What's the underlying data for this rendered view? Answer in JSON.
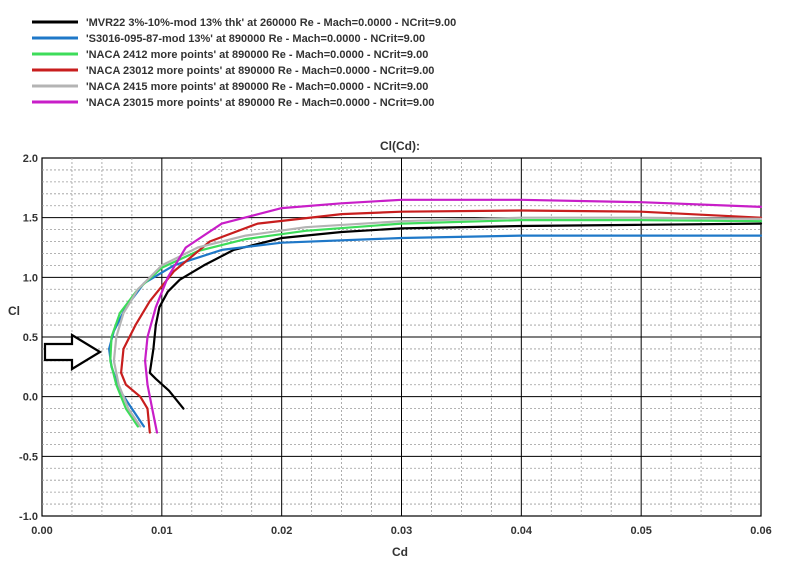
{
  "chart_data": {
    "type": "line",
    "title": "Cl(Cd):",
    "xlabel": "Cd",
    "ylabel": "Cl",
    "xlim": [
      0,
      0.06
    ],
    "ylim": [
      -1.0,
      2.0
    ],
    "x_ticks": [
      "0.00",
      "0.01",
      "0.02",
      "0.03",
      "0.04",
      "0.05",
      "0.06"
    ],
    "y_ticks": [
      "-1.0",
      "-0.5",
      "0.0",
      "0.5",
      "1.0",
      "1.5",
      "2.0"
    ],
    "grid": true,
    "legend_position": "top-left",
    "annotation": "arrow pointing at Cl 0.4",
    "series": [
      {
        "name": "'MVR22 3%-10%-mod 13% thk' at 260000 Re - Mach=0.0000 - NCrit=9.00",
        "color": "#000000",
        "x": [
          0.0118,
          0.0106,
          0.0095,
          0.009,
          0.0093,
          0.0095,
          0.0098,
          0.0105,
          0.0115,
          0.0135,
          0.016,
          0.02,
          0.025,
          0.03,
          0.04,
          0.05,
          0.06
        ],
        "y": [
          -0.1,
          0.05,
          0.15,
          0.2,
          0.4,
          0.6,
          0.75,
          0.88,
          0.98,
          1.1,
          1.23,
          1.33,
          1.38,
          1.41,
          1.43,
          1.44,
          1.45
        ]
      },
      {
        "name": "'S3016-095-87-mod 13%' at 890000 Re - Mach=0.0000 - NCrit=9.00",
        "color": "#1f78c8",
        "x": [
          0.0085,
          0.0075,
          0.0065,
          0.0058,
          0.0056,
          0.006,
          0.007,
          0.0085,
          0.011,
          0.015,
          0.02,
          0.03,
          0.04,
          0.05,
          0.06
        ],
        "y": [
          -0.25,
          -0.1,
          0.05,
          0.25,
          0.4,
          0.55,
          0.75,
          0.95,
          1.1,
          1.23,
          1.29,
          1.33,
          1.35,
          1.35,
          1.35
        ]
      },
      {
        "name": "'NACA 2412 more points' at 890000 Re - Mach=0.0000 - NCrit=9.00",
        "color": "#3ddc5a",
        "x": [
          0.008,
          0.007,
          0.0062,
          0.0057,
          0.0058,
          0.0065,
          0.008,
          0.01,
          0.013,
          0.017,
          0.022,
          0.03,
          0.04,
          0.05,
          0.06
        ],
        "y": [
          -0.25,
          -0.1,
          0.1,
          0.3,
          0.5,
          0.7,
          0.9,
          1.08,
          1.22,
          1.32,
          1.39,
          1.45,
          1.48,
          1.48,
          1.47
        ]
      },
      {
        "name": "'NACA 23012 more points' at 890000 Re - Mach=0.0000 - NCrit=9.00",
        "color": "#c81e1e",
        "x": [
          0.009,
          0.0088,
          0.0082,
          0.007,
          0.0066,
          0.0068,
          0.0078,
          0.009,
          0.011,
          0.014,
          0.018,
          0.025,
          0.03,
          0.04,
          0.05,
          0.06
        ],
        "y": [
          -0.3,
          -0.1,
          0.0,
          0.1,
          0.2,
          0.4,
          0.6,
          0.8,
          1.05,
          1.3,
          1.45,
          1.53,
          1.55,
          1.56,
          1.55,
          1.5
        ]
      },
      {
        "name": "'NACA 2415 more points' at 890000 Re - Mach=0.0000 - NCrit=9.00",
        "color": "#b4b4b4",
        "x": [
          0.0082,
          0.0072,
          0.0064,
          0.006,
          0.0062,
          0.0068,
          0.008,
          0.01,
          0.013,
          0.017,
          0.022,
          0.03,
          0.04,
          0.05,
          0.06
        ],
        "y": [
          -0.25,
          -0.1,
          0.1,
          0.3,
          0.5,
          0.7,
          0.9,
          1.1,
          1.25,
          1.35,
          1.42,
          1.47,
          1.5,
          1.5,
          1.49
        ]
      },
      {
        "name": "'NACA 23015 more points' at 890000 Re - Mach=0.0000 - NCrit=9.00",
        "color": "#c81ec8",
        "x": [
          0.0096,
          0.0092,
          0.0088,
          0.0086,
          0.0088,
          0.0095,
          0.0105,
          0.012,
          0.015,
          0.02,
          0.025,
          0.03,
          0.04,
          0.05,
          0.06
        ],
        "y": [
          -0.3,
          -0.1,
          0.1,
          0.3,
          0.5,
          0.75,
          1.0,
          1.25,
          1.45,
          1.58,
          1.62,
          1.65,
          1.65,
          1.63,
          1.59
        ]
      }
    ]
  }
}
